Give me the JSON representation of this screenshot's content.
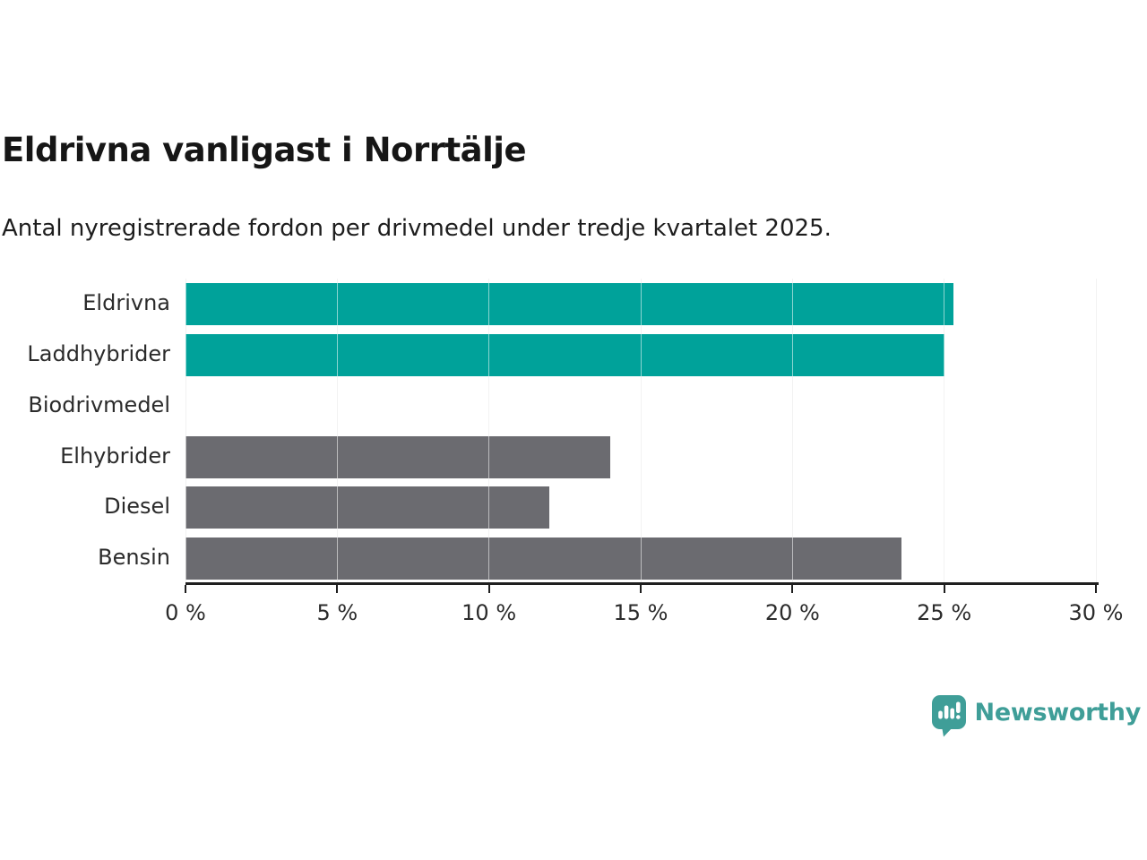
{
  "header": {
    "title": "Eldrivna vanligast i Norrtälje",
    "subtitle": "Antal nyregistrerade fordon per drivmedel under tredje kvartalet 2025."
  },
  "chart_data": {
    "type": "bar",
    "orientation": "horizontal",
    "title": "Eldrivna vanligast i Norrtälje",
    "subtitle": "Antal nyregistrerade fordon per drivmedel under tredje kvartalet 2025.",
    "categories": [
      "Eldrivna",
      "Laddhybrider",
      "Biodrivmedel",
      "Elhybrider",
      "Diesel",
      "Bensin"
    ],
    "values": [
      25.3,
      25.0,
      0,
      14.0,
      12.0,
      23.6
    ],
    "unit": "%",
    "xlim": [
      0,
      30
    ],
    "x_ticks": [
      0,
      5,
      10,
      15,
      20,
      25,
      30
    ],
    "x_tick_labels": [
      "0 %",
      "5 %",
      "10 %",
      "15 %",
      "20 %",
      "25 %",
      "30 %"
    ],
    "grid": true,
    "legend": "none",
    "bar_colors": [
      "#00a29a",
      "#00a29a",
      "#6b6b70",
      "#6b6b70",
      "#6b6b70",
      "#6b6b70"
    ],
    "colors": {
      "highlight_teal": "#00a29a",
      "default_gray": "#6b6b70"
    }
  },
  "footer": {
    "brand": "Newsworthy",
    "brand_color": "#3f9e98"
  }
}
